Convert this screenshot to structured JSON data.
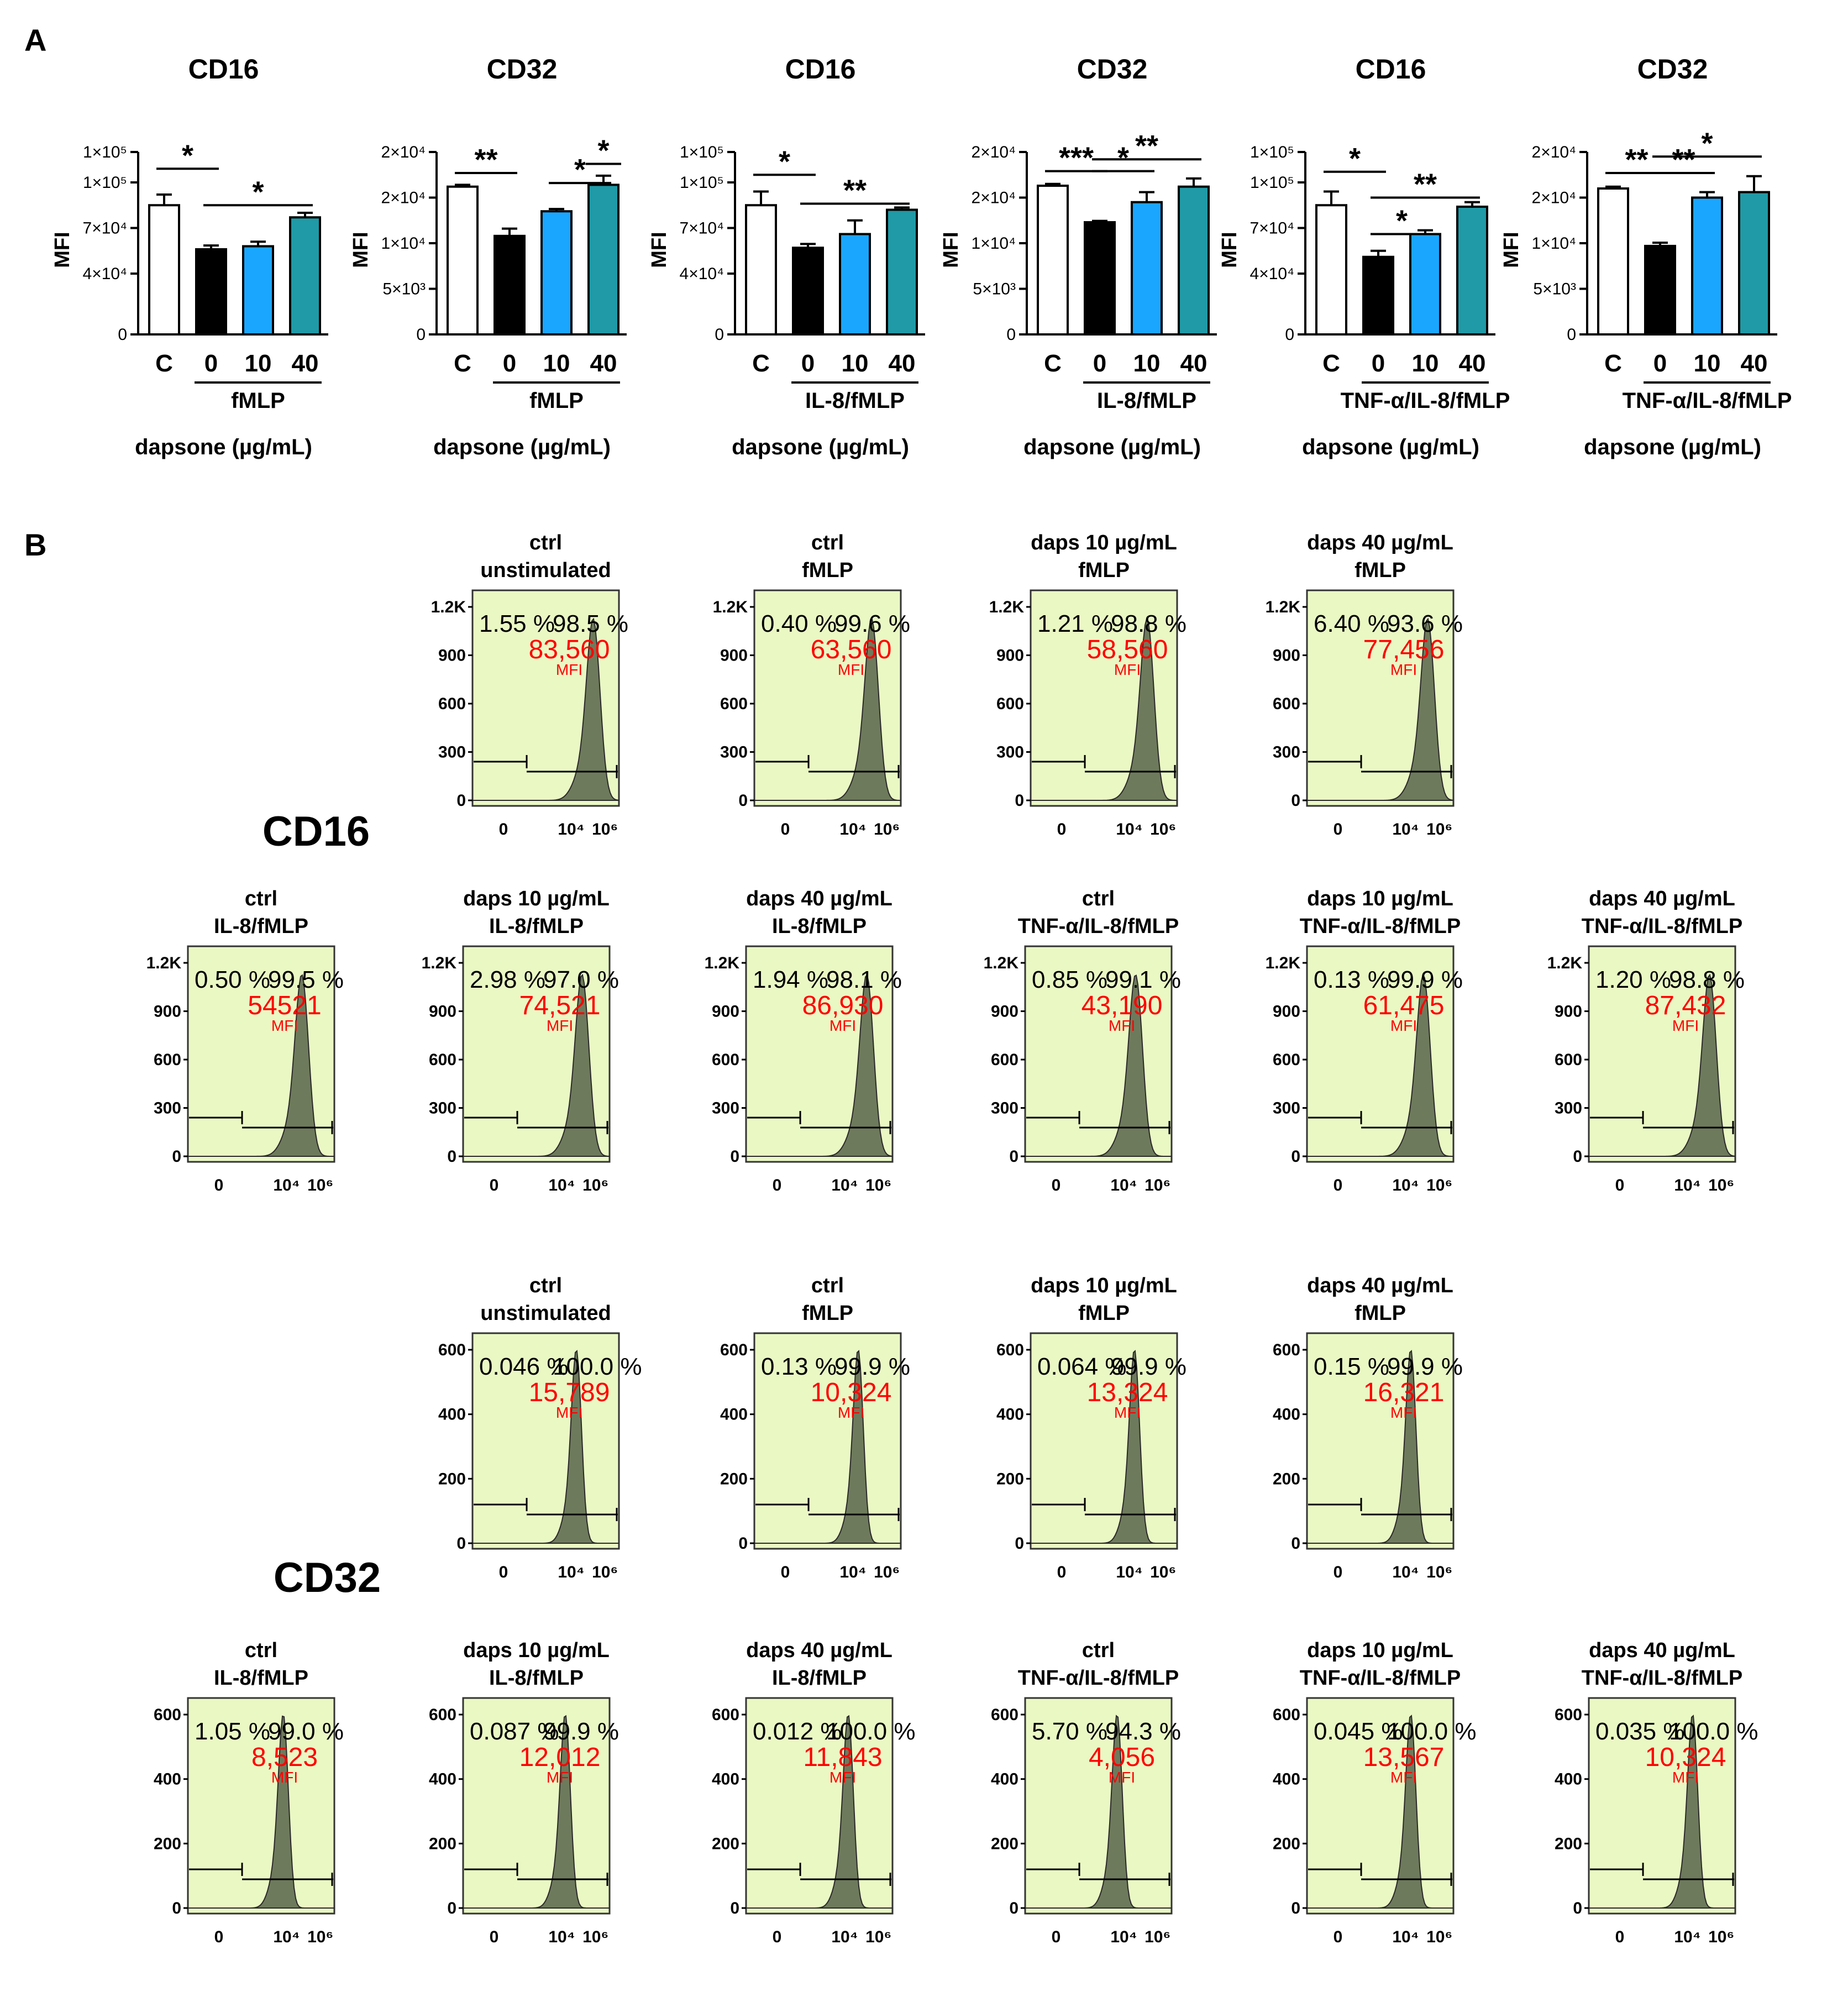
{
  "labels": {
    "A": "A",
    "B": "B",
    "cd16": "CD16",
    "cd32": "CD32"
  },
  "colors": {
    "bg": "#ffffff",
    "panel": "#eaf8c4",
    "peak": "#6e7a5c",
    "mfi": "#ff0000",
    "bar_c": "#ffffff",
    "bar_0": "#000000",
    "bar_10": "#1aa6ff",
    "bar_40": "#1f9aa6"
  },
  "chart_data": {
    "panel_a": {
      "type": "bar",
      "ylabel": "MFI",
      "categories": [
        "C",
        "0",
        "10",
        "40"
      ],
      "dose_label": "dapsone (µg/mL)",
      "charts": [
        {
          "title": "CD16",
          "stimulus": "fMLP",
          "ylim": [
            0,
            120000
          ],
          "yticks": [
            {
              "v": 0,
              "t": "0"
            },
            {
              "v": 40000,
              "t": "4×10⁴"
            },
            {
              "v": 70000,
              "t": "7×10⁴"
            },
            {
              "v": 100000,
              "t": "1×10⁵"
            },
            {
              "v": 120000,
              "t": "1×10⁵"
            }
          ],
          "values": [
            85000,
            56000,
            58000,
            77000
          ],
          "errors": [
            7000,
            2500,
            3000,
            3000
          ],
          "sig": [
            {
              "a": 0,
              "b": 1,
              "label": "*",
              "y": 109000
            },
            {
              "a": 1,
              "b": 3,
              "label": "*",
              "y": 85000
            }
          ]
        },
        {
          "title": "CD32",
          "stimulus": "fMLP",
          "ylim": [
            0,
            20000
          ],
          "yticks": [
            {
              "v": 0,
              "t": "0"
            },
            {
              "v": 5000,
              "t": "5×10³"
            },
            {
              "v": 10000,
              "t": "1×10⁴"
            },
            {
              "v": 15000,
              "t": "2×10⁴"
            },
            {
              "v": 20000,
              "t": "2×10⁴"
            }
          ],
          "values": [
            16200,
            10800,
            13500,
            16400
          ],
          "errors": [
            200,
            800,
            250,
            1000
          ],
          "sig": [
            {
              "a": 0,
              "b": 1,
              "label": "**",
              "y": 17700
            },
            {
              "a": 2,
              "b": 3,
              "label": "*",
              "y": 16600
            },
            {
              "a": 3,
              "b": 3,
              "label": "*",
              "y": 18700
            }
          ]
        },
        {
          "title": "CD16",
          "stimulus": "IL-8/fMLP",
          "ylim": [
            0,
            120000
          ],
          "yticks": [
            {
              "v": 0,
              "t": "0"
            },
            {
              "v": 40000,
              "t": "4×10⁴"
            },
            {
              "v": 70000,
              "t": "7×10⁴"
            },
            {
              "v": 100000,
              "t": "1×10⁵"
            },
            {
              "v": 120000,
              "t": "1×10⁵"
            }
          ],
          "values": [
            85000,
            57000,
            66000,
            82000
          ],
          "errors": [
            9000,
            2500,
            9000,
            1500
          ],
          "sig": [
            {
              "a": 0,
              "b": 1,
              "label": "*",
              "y": 105000
            },
            {
              "a": 1,
              "b": 3,
              "label": "**",
              "y": 86000
            }
          ]
        },
        {
          "title": "CD32",
          "stimulus": "IL-8/fMLP",
          "ylim": [
            0,
            20000
          ],
          "yticks": [
            {
              "v": 0,
              "t": "0"
            },
            {
              "v": 5000,
              "t": "5×10³"
            },
            {
              "v": 10000,
              "t": "1×10⁴"
            },
            {
              "v": 15000,
              "t": "2×10⁴"
            },
            {
              "v": 20000,
              "t": "2×10⁴"
            }
          ],
          "values": [
            16300,
            12300,
            14500,
            16200
          ],
          "errors": [
            200,
            150,
            1100,
            900
          ],
          "sig": [
            {
              "a": 0,
              "b": 1,
              "label": "***",
              "y": 17900
            },
            {
              "a": 1,
              "b": 2,
              "label": "*",
              "y": 17900
            },
            {
              "a": 1,
              "b": 3,
              "label": "**",
              "y": 19200
            }
          ]
        },
        {
          "title": "CD16",
          "stimulus": "TNF-α/IL-8/fMLP",
          "ylim": [
            0,
            120000
          ],
          "yticks": [
            {
              "v": 0,
              "t": "0"
            },
            {
              "v": 40000,
              "t": "4×10⁴"
            },
            {
              "v": 70000,
              "t": "7×10⁴"
            },
            {
              "v": 100000,
              "t": "1×10⁵"
            },
            {
              "v": 120000,
              "t": "1×10⁵"
            }
          ],
          "values": [
            85000,
            51000,
            66000,
            84000
          ],
          "errors": [
            9000,
            4000,
            2500,
            3000
          ],
          "sig": [
            {
              "a": 0,
              "b": 1,
              "label": "*",
              "y": 107000
            },
            {
              "a": 1,
              "b": 2,
              "label": "*",
              "y": 66000
            },
            {
              "a": 1,
              "b": 3,
              "label": "**",
              "y": 90000
            }
          ]
        },
        {
          "title": "CD32",
          "stimulus": "TNF-α/IL-8/fMLP",
          "ylim": [
            0,
            20000
          ],
          "yticks": [
            {
              "v": 0,
              "t": "0"
            },
            {
              "v": 5000,
              "t": "5×10³"
            },
            {
              "v": 10000,
              "t": "1×10⁴"
            },
            {
              "v": 15000,
              "t": "2×10⁴"
            },
            {
              "v": 20000,
              "t": "2×10⁴"
            }
          ],
          "values": [
            16000,
            9700,
            15000,
            15600
          ],
          "errors": [
            200,
            350,
            600,
            1750
          ],
          "sig": [
            {
              "a": 0,
              "b": 1,
              "label": "**",
              "y": 17700
            },
            {
              "a": 1,
              "b": 2,
              "label": "**",
              "y": 17700
            },
            {
              "a": 1,
              "b": 3,
              "label": "*",
              "y": 19500
            }
          ]
        }
      ]
    },
    "panel_b": {
      "type": "area",
      "xticks": [
        "0",
        "10⁴",
        "10⁶"
      ],
      "mfi_label": "MFI",
      "cd16": {
        "yticks": [
          "0",
          "300",
          "600",
          "900",
          "1.2K"
        ],
        "row1": [
          {
            "t1": "ctrl",
            "t2": "unstimulated",
            "left": "1.55",
            "right": "98.5",
            "mfi": "83,560",
            "peak": 5.0
          },
          {
            "t1": "ctrl",
            "t2": "fMLP",
            "left": "0.40",
            "right": "99.6",
            "mfi": "63,560",
            "peak": 4.8
          },
          {
            "t1": "daps 10 µg/mL",
            "t2": "fMLP",
            "left": "1.21",
            "right": "98.8",
            "mfi": "58,560",
            "peak": 4.75
          },
          {
            "t1": "daps 40 µg/mL",
            "t2": "fMLP",
            "left": "6.40",
            "right": "93.6",
            "mfi": "77,456",
            "peak": 5.0
          }
        ],
        "row2": [
          {
            "t1": "ctrl",
            "t2": "IL-8/fMLP",
            "left": "0.50",
            "right": "99.5",
            "mfi": "54521",
            "peak": 4.6
          },
          {
            "t1": "daps 10 µg/mL",
            "t2": "IL-8/fMLP",
            "left": "2.98",
            "right": "97.0",
            "mfi": "74,521",
            "peak": 4.9
          },
          {
            "t1": "daps 40 µg/mL",
            "t2": "IL-8/fMLP",
            "left": "1.94",
            "right": "98.1",
            "mfi": "86,930",
            "peak": 5.0
          },
          {
            "t1": "ctrl",
            "t2": "TNF-α/IL-8/fMLP",
            "left": "0.85",
            "right": "99.1",
            "mfi": "43,190",
            "peak": 4.4
          },
          {
            "t1": "daps 10 µg/mL",
            "t2": "TNF-α/IL-8/fMLP",
            "left": "0.13",
            "right": "99.9",
            "mfi": "61,475",
            "peak": 4.75
          },
          {
            "t1": "daps 40 µg/mL",
            "t2": "TNF-α/IL-8/fMLP",
            "left": "1.20",
            "right": "98.8",
            "mfi": "87,432",
            "peak": 5.0
          }
        ]
      },
      "cd32": {
        "yticks": [
          "0",
          "200",
          "400",
          "600"
        ],
        "row1": [
          {
            "t1": "ctrl",
            "t2": "unstimulated",
            "left": "0.046",
            "right": "100.0",
            "mfi": "15,789",
            "peak": 4.0
          },
          {
            "t1": "ctrl",
            "t2": "fMLP",
            "left": "0.13",
            "right": "99.9",
            "mfi": "10,324",
            "peak": 4.0
          },
          {
            "t1": "daps 10 µg/mL",
            "t2": "fMLP",
            "left": "0.064",
            "right": "99.9",
            "mfi": "13,324",
            "peak": 4.0
          },
          {
            "t1": "daps 40 µg/mL",
            "t2": "fMLP",
            "left": "0.15",
            "right": "99.9",
            "mfi": "16,321",
            "peak": 4.0
          }
        ],
        "row2": [
          {
            "t1": "ctrl",
            "t2": "IL-8/fMLP",
            "left": "1.05",
            "right": "99.0",
            "mfi": "8,523",
            "peak": 3.5
          },
          {
            "t1": "daps 10 µg/mL",
            "t2": "IL-8/fMLP",
            "left": "0.087",
            "right": "99.9",
            "mfi": "12,012",
            "peak": 3.9
          },
          {
            "t1": "daps 40 µg/mL",
            "t2": "IL-8/fMLP",
            "left": "0.012",
            "right": "100.0",
            "mfi": "11,843",
            "peak": 3.9
          },
          {
            "t1": "ctrl",
            "t2": "TNF-α/IL-8/fMLP",
            "left": "5.70",
            "right": "94.3",
            "mfi": "4,056",
            "peak": 3.3
          },
          {
            "t1": "daps 10 µg/mL",
            "t2": "TNF-α/IL-8/fMLP",
            "left": "0.045",
            "right": "100.0",
            "mfi": "13,567",
            "peak": 4.0
          },
          {
            "t1": "daps 40 µg/mL",
            "t2": "TNF-α/IL-8/fMLP",
            "left": "0.035",
            "right": "100.0",
            "mfi": "10,324",
            "peak": 4.0
          }
        ]
      }
    }
  }
}
